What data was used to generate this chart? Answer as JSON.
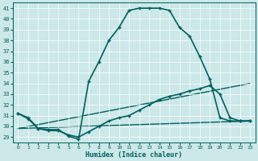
{
  "xlabel": "Humidex (Indice chaleur)",
  "background_color": "#cce8e8",
  "grid_color": "#ffffff",
  "line_color": "#006060",
  "xlim": [
    -0.5,
    23.5
  ],
  "ylim": [
    28.5,
    41.5
  ],
  "yticks": [
    29,
    30,
    31,
    32,
    33,
    34,
    35,
    36,
    37,
    38,
    39,
    40,
    41
  ],
  "xticks": [
    0,
    1,
    2,
    3,
    4,
    5,
    6,
    7,
    8,
    9,
    10,
    11,
    12,
    13,
    14,
    15,
    16,
    17,
    18,
    19,
    20,
    21,
    22,
    23
  ],
  "lines": [
    {
      "x": [
        0,
        1,
        2,
        3,
        4,
        5,
        6,
        7,
        8,
        9,
        10,
        11,
        12,
        13,
        14,
        15,
        16,
        17,
        18,
        19,
        20,
        21,
        22,
        23
      ],
      "y": [
        31.2,
        30.8,
        29.8,
        29.7,
        29.7,
        29.1,
        28.8,
        34.2,
        36.0,
        38.0,
        39.2,
        40.8,
        41.0,
        41.0,
        41.0,
        40.8,
        39.2,
        38.4,
        36.5,
        34.4,
        30.8,
        30.5,
        30.5,
        30.5
      ],
      "marker": "+",
      "markersize": 3,
      "lw": 1.2
    },
    {
      "x": [
        0,
        1,
        2,
        3,
        4,
        5,
        6,
        7,
        8,
        9,
        10,
        11,
        12,
        13,
        14,
        15,
        16,
        17,
        18,
        19,
        20,
        21,
        22,
        23
      ],
      "y": [
        31.2,
        30.7,
        29.8,
        29.6,
        29.6,
        29.2,
        29.0,
        29.5,
        30.0,
        30.5,
        30.8,
        31.0,
        31.5,
        32.0,
        32.5,
        32.8,
        33.0,
        33.3,
        33.5,
        33.8,
        33.0,
        30.8,
        30.5,
        30.5
      ],
      "marker": "+",
      "markersize": 3,
      "lw": 1.2
    },
    {
      "x": [
        0,
        23
      ],
      "y": [
        29.8,
        34.0
      ],
      "marker": null,
      "lw": 1.0
    },
    {
      "x": [
        0,
        23
      ],
      "y": [
        29.8,
        30.5
      ],
      "marker": null,
      "lw": 1.0
    }
  ]
}
